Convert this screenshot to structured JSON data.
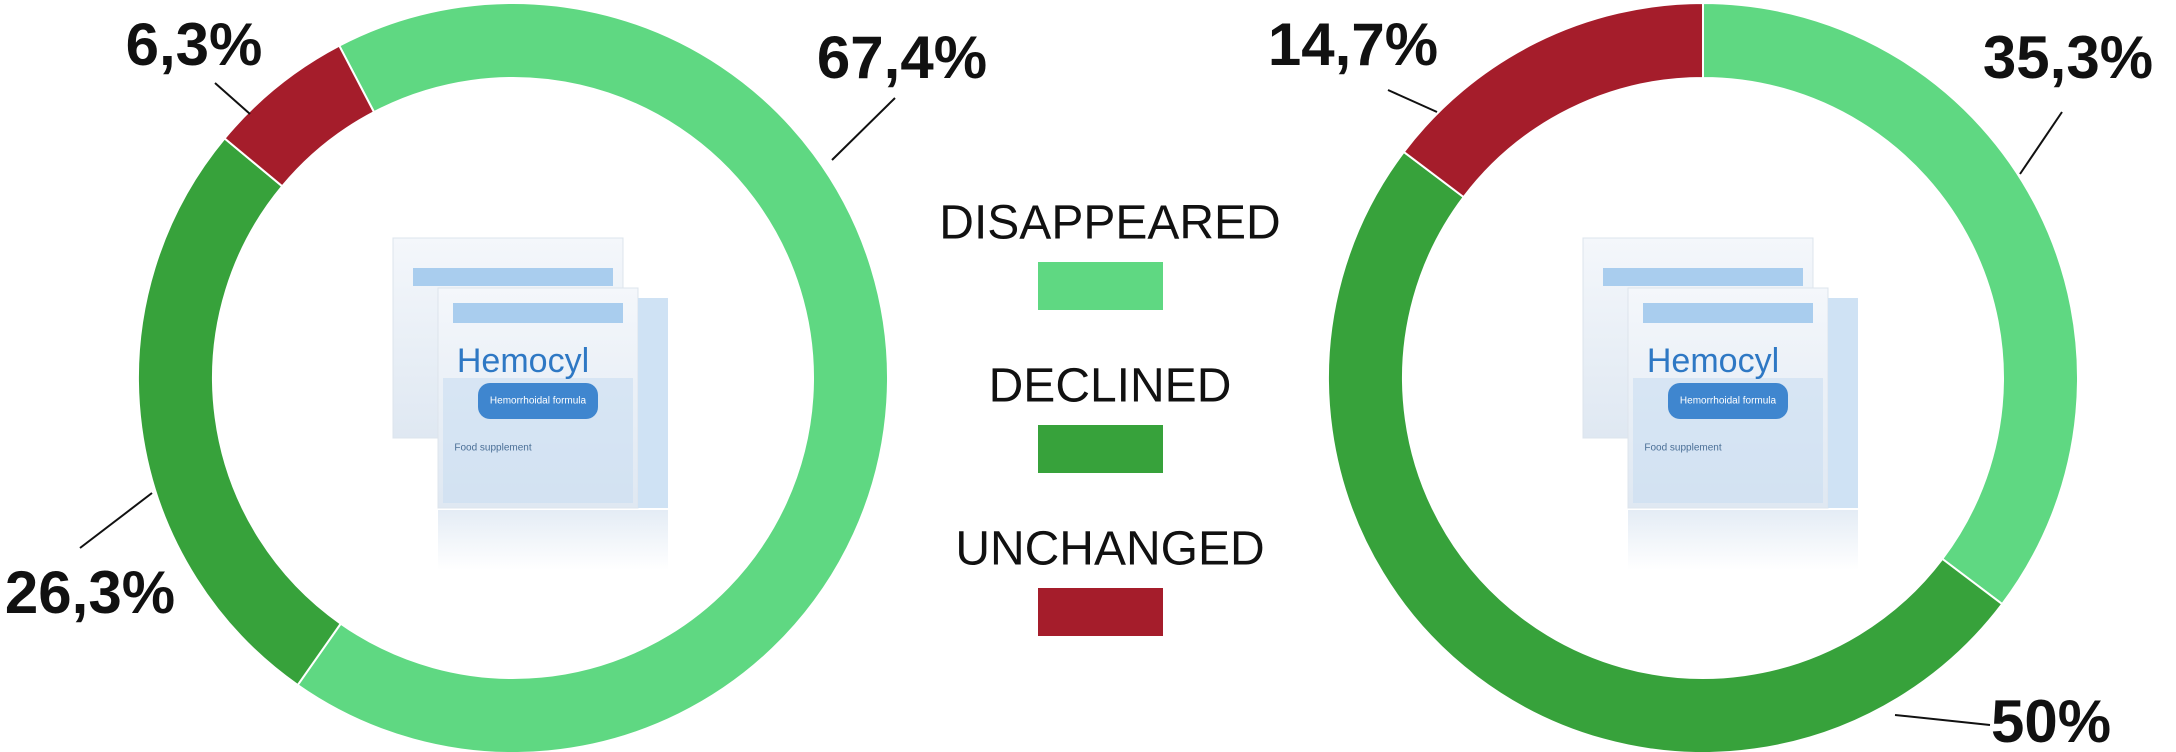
{
  "legend": [
    {
      "name": "DISAPPEARED",
      "color": "#5fd882"
    },
    {
      "name": "DECLINED",
      "color": "#37a23b"
    },
    {
      "name": "UNCHANGED",
      "color": "#a51d2b"
    }
  ],
  "product": {
    "brand": "Hemocyl",
    "subtitle": "Hemorrhoidal formula",
    "note": "Food supplement"
  },
  "chart_data": [
    {
      "type": "pie",
      "values": [
        67.4,
        26.3,
        6.3
      ],
      "value_labels": [
        "67,4%",
        "26,3%",
        "6,3%"
      ]
    },
    {
      "type": "pie",
      "values": [
        35.3,
        50,
        14.7
      ],
      "value_labels": [
        "35,3%",
        "50%",
        "14,7%"
      ]
    }
  ]
}
